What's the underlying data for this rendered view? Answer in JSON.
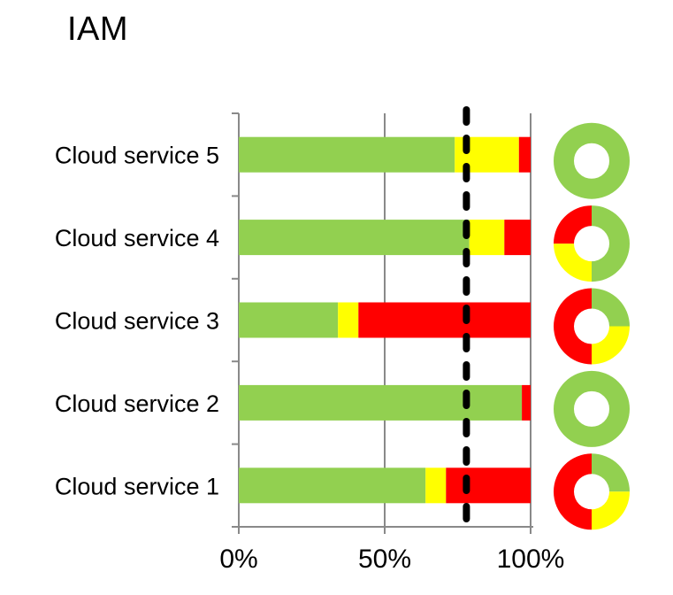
{
  "page_title": "IAM",
  "colors": {
    "green": "#92D050",
    "yellow": "#FFFF00",
    "red": "#FF0000",
    "axis": "#898989",
    "reference": "#000000",
    "text": "#000000",
    "background": "#FFFFFF"
  },
  "chart_data": {
    "type": "bar",
    "subtype": "horizontal-stacked-with-donut-indicators",
    "title": "IAM",
    "xlabel": "",
    "ylabel": "",
    "xlim": [
      0,
      100
    ],
    "grid": true,
    "legend": "none",
    "categories": [
      "Cloud service 5",
      "Cloud service 4",
      "Cloud service 3",
      "Cloud service 2",
      "Cloud service 1"
    ],
    "categories_order": "top-to-bottom",
    "series": [
      {
        "name": "green",
        "color_key": "green",
        "values": [
          74,
          79,
          34,
          97,
          64
        ]
      },
      {
        "name": "yellow",
        "color_key": "yellow",
        "values": [
          22,
          12,
          7,
          0,
          7
        ]
      },
      {
        "name": "red",
        "color_key": "red",
        "values": [
          4,
          9,
          59,
          3,
          29
        ]
      }
    ],
    "xticks": [
      {
        "value": 0,
        "label": "0%"
      },
      {
        "value": 50,
        "label": "50%"
      },
      {
        "value": 100,
        "label": "100%"
      }
    ],
    "reference_line": {
      "value": 78,
      "style": "dashed",
      "color": "#000000"
    },
    "donuts": [
      {
        "category": "Cloud service 5",
        "segments": {
          "green": 100,
          "yellow": 0,
          "red": 0
        }
      },
      {
        "category": "Cloud service 4",
        "segments": {
          "green": 50,
          "yellow": 25,
          "red": 25
        }
      },
      {
        "category": "Cloud service 3",
        "segments": {
          "green": 25,
          "yellow": 25,
          "red": 50
        }
      },
      {
        "category": "Cloud service 2",
        "segments": {
          "green": 100,
          "yellow": 0,
          "red": 0
        }
      },
      {
        "category": "Cloud service 1",
        "segments": {
          "green": 25,
          "yellow": 25,
          "red": 50
        }
      }
    ]
  }
}
